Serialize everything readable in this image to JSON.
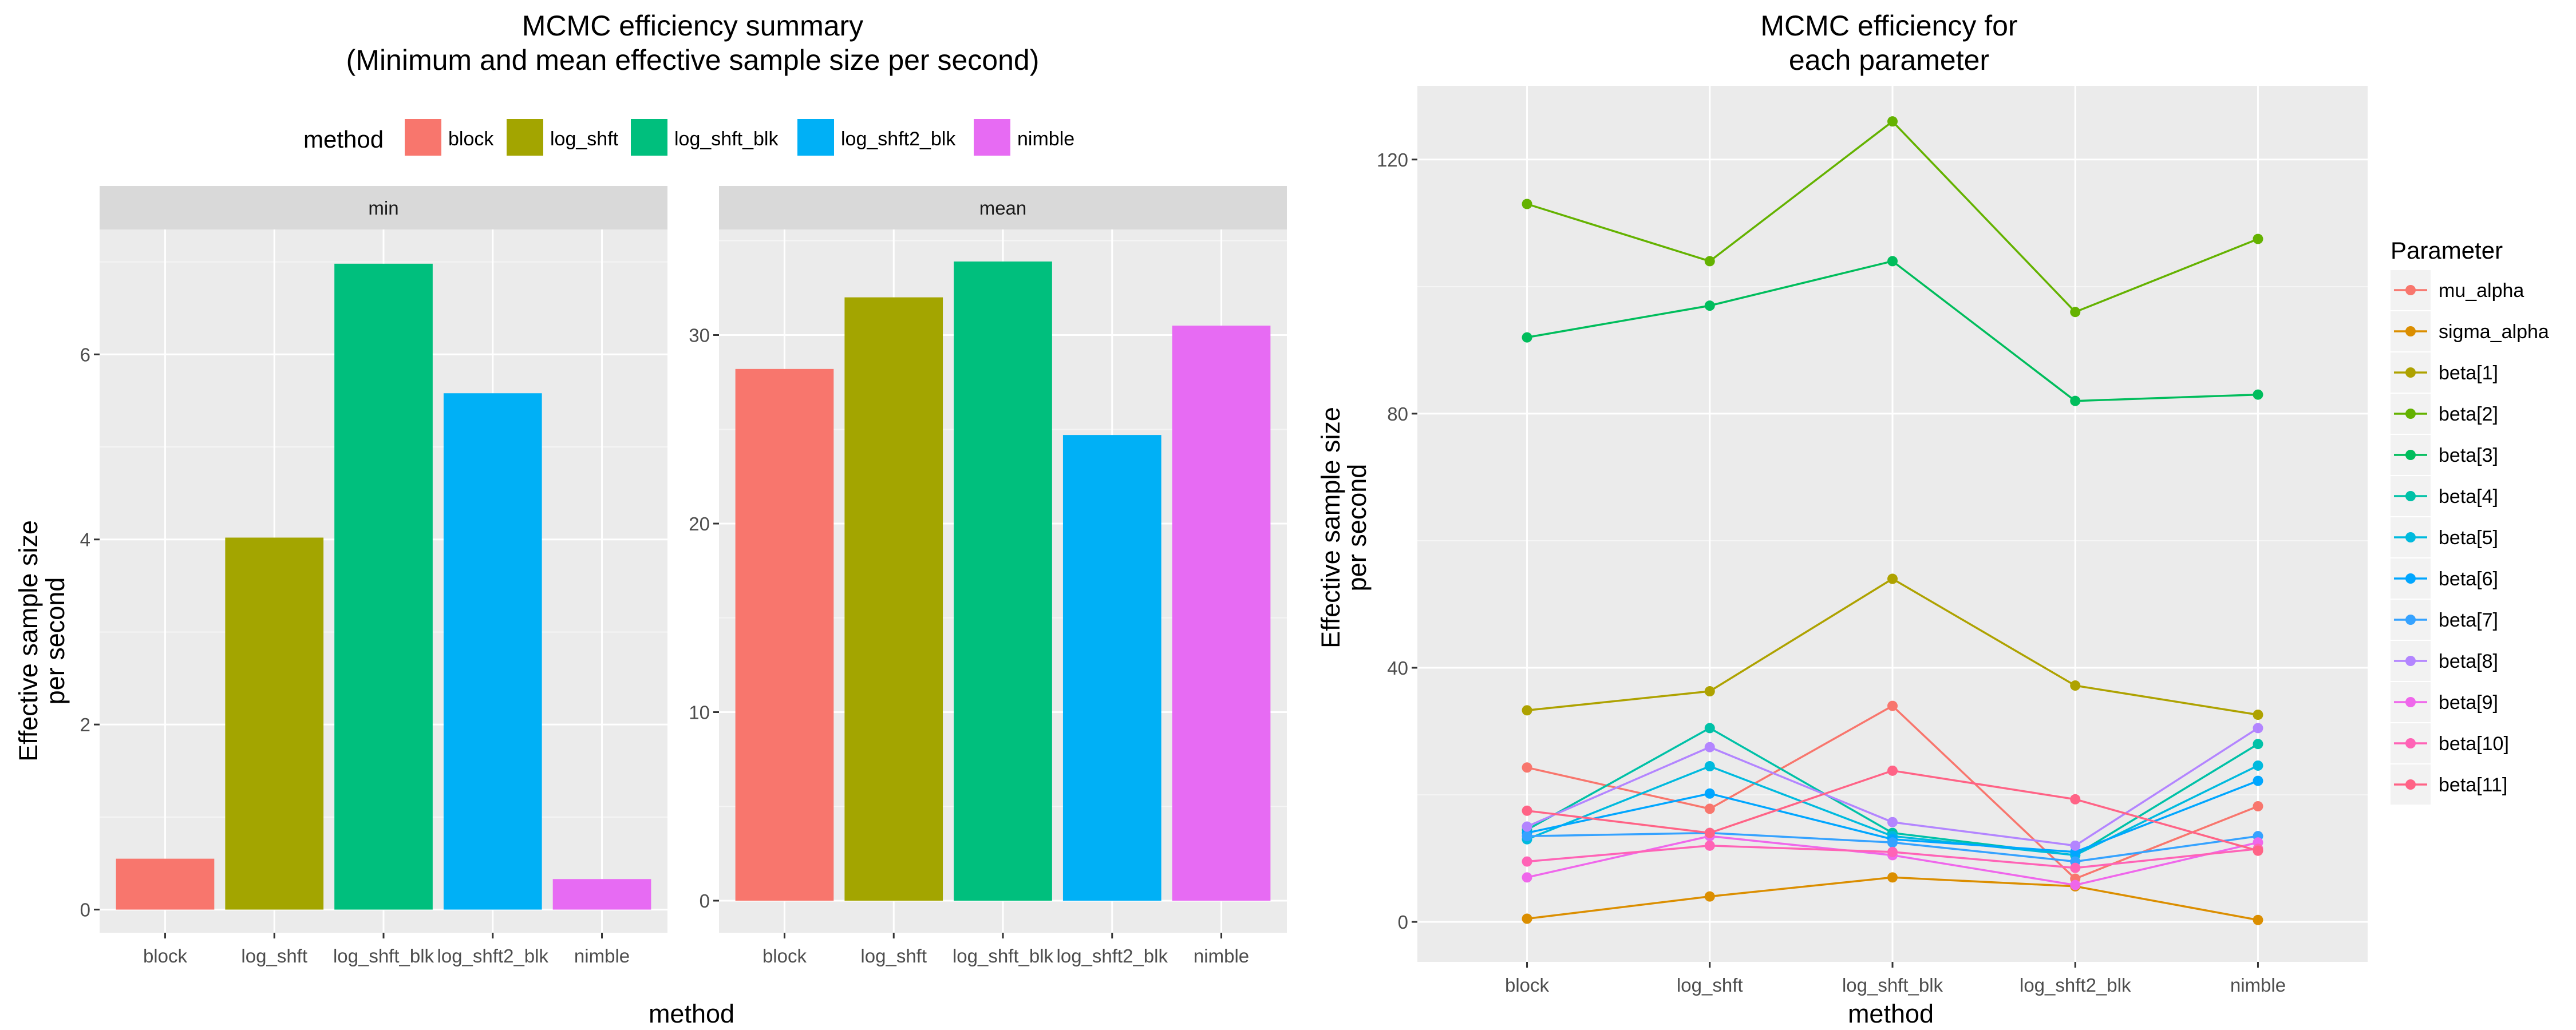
{
  "left": {
    "title_line1": "MCMC efficiency summary",
    "title_line2": "(Minimum and mean effective sample size per second)",
    "legend_title": "method",
    "xlabel": "method",
    "ylabel_line1": "Effective sample size",
    "ylabel_line2": "per second"
  },
  "right": {
    "title_line1": "MCMC efficiency for",
    "title_line2": "each parameter",
    "legend_title": "Parameter",
    "xlabel": "method",
    "ylabel_line1": "Effective sample size",
    "ylabel_line2": "per second"
  },
  "chart_data": [
    {
      "type": "bar",
      "facet": "min",
      "categories": [
        "block",
        "log_shft",
        "log_shft_blk",
        "log_shft2_blk",
        "nimble"
      ],
      "values": [
        0.55,
        4.02,
        6.98,
        5.58,
        0.33
      ],
      "colors": [
        "#F8766D",
        "#A3A500",
        "#00BF7D",
        "#00B0F6",
        "#E76BF3"
      ],
      "ylim": [
        -0.25,
        7.35
      ],
      "yticks": [
        0,
        2,
        4,
        6
      ],
      "grid": true
    },
    {
      "type": "bar",
      "facet": "mean",
      "categories": [
        "block",
        "log_shft",
        "log_shft_blk",
        "log_shft2_blk",
        "nimble"
      ],
      "values": [
        28.2,
        32.0,
        33.9,
        24.7,
        30.5
      ],
      "colors": [
        "#F8766D",
        "#A3A500",
        "#00BF7D",
        "#00B0F6",
        "#E76BF3"
      ],
      "ylim": [
        -1.7,
        35.6
      ],
      "yticks": [
        0,
        10,
        20,
        30
      ],
      "grid": true
    },
    {
      "type": "line",
      "x": [
        "block",
        "log_shft",
        "log_shft_blk",
        "log_shft2_blk",
        "nimble"
      ],
      "ylim": [
        -6.3,
        131.6
      ],
      "yticks": [
        0,
        40,
        80,
        120
      ],
      "grid": true,
      "legend_position": "right",
      "series": [
        {
          "name": "mu_alpha",
          "color": "#F8766D",
          "values": [
            24.3,
            17.8,
            34.0,
            6.8,
            18.2
          ]
        },
        {
          "name": "sigma_alpha",
          "color": "#DB8E00",
          "values": [
            0.5,
            4.0,
            7.0,
            5.6,
            0.3
          ]
        },
        {
          "name": "beta[1]",
          "color": "#AEA200",
          "values": [
            33.3,
            36.3,
            54.0,
            37.2,
            32.6
          ]
        },
        {
          "name": "beta[2]",
          "color": "#64B200",
          "values": [
            113.0,
            104.0,
            126.0,
            96.0,
            107.5
          ]
        },
        {
          "name": "beta[3]",
          "color": "#00BD5C",
          "values": [
            92.0,
            97.0,
            104.0,
            82.0,
            83.0
          ]
        },
        {
          "name": "beta[4]",
          "color": "#00C1A7",
          "values": [
            14.5,
            30.5,
            14.0,
            10.5,
            28.0
          ]
        },
        {
          "name": "beta[5]",
          "color": "#00BADE",
          "values": [
            13.0,
            24.5,
            13.5,
            10.5,
            24.6
          ]
        },
        {
          "name": "beta[6]",
          "color": "#00A6FF",
          "values": [
            14.0,
            20.2,
            13.0,
            11.0,
            22.2
          ]
        },
        {
          "name": "beta[7]",
          "color": "#35A2FF",
          "values": [
            13.5,
            14.0,
            12.5,
            9.5,
            13.5
          ]
        },
        {
          "name": "beta[8]",
          "color": "#B385FF",
          "values": [
            15.0,
            27.5,
            15.7,
            12.0,
            30.5
          ]
        },
        {
          "name": "beta[9]",
          "color": "#EF67EB",
          "values": [
            7.0,
            13.5,
            10.5,
            5.8,
            12.5
          ]
        },
        {
          "name": "beta[10]",
          "color": "#FF63B6",
          "values": [
            9.5,
            12.0,
            11.0,
            8.5,
            11.5
          ]
        },
        {
          "name": "beta[11]",
          "color": "#FF6386",
          "values": [
            17.5,
            14.0,
            23.8,
            19.3,
            11.2
          ]
        }
      ]
    }
  ]
}
